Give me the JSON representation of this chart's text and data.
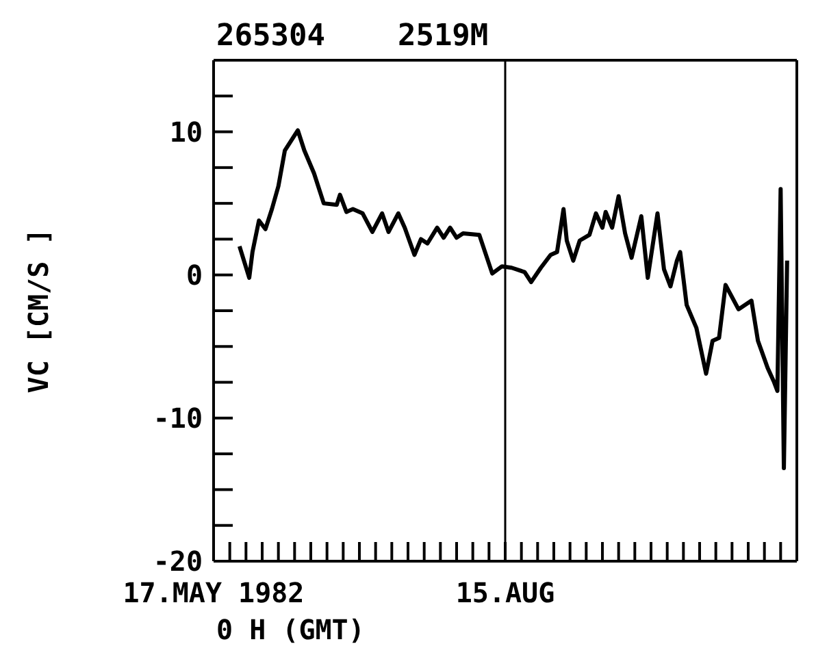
{
  "chart_data": {
    "type": "line",
    "title": "265304    2519M",
    "xlabel": "0 H (GMT)",
    "ylabel": "VC   [CM/S  ]",
    "x": [
      "1982-05-25",
      "1982-05-28",
      "1982-05-29",
      "1982-05-31",
      "1982-06-02",
      "1982-06-04",
      "1982-06-06",
      "1982-06-08",
      "1982-06-12",
      "1982-06-14",
      "1982-06-17",
      "1982-06-20",
      "1982-06-24",
      "1982-06-25",
      "1982-06-27",
      "1982-06-29",
      "1982-07-02",
      "1982-07-05",
      "1982-07-08",
      "1982-07-10",
      "1982-07-13",
      "1982-07-15",
      "1982-07-18",
      "1982-07-20",
      "1982-07-22",
      "1982-07-25",
      "1982-07-27",
      "1982-07-29",
      "1982-07-31",
      "1982-08-02",
      "1982-08-07",
      "1982-08-11",
      "1982-08-14",
      "1982-08-17",
      "1982-08-21",
      "1982-08-23",
      "1982-08-26",
      "1982-08-29",
      "1982-08-31",
      "1982-09-02",
      "1982-09-03",
      "1982-09-05",
      "1982-09-07",
      "1982-09-10",
      "1982-09-12",
      "1982-09-14",
      "1982-09-15",
      "1982-09-17",
      "1982-09-19",
      "1982-09-21",
      "1982-09-23",
      "1982-09-26",
      "1982-09-28",
      "1982-10-01",
      "1982-10-03",
      "1982-10-05",
      "1982-10-07",
      "1982-10-08",
      "1982-10-10",
      "1982-10-13",
      "1982-10-16",
      "1982-10-18",
      "1982-10-20",
      "1982-10-22",
      "1982-10-26",
      "1982-10-30",
      "1982-11-01",
      "1982-11-04",
      "1982-11-06",
      "1982-11-07",
      "1982-11-08",
      "1982-11-09",
      "1982-11-10"
    ],
    "series": [
      {
        "color": "#000000",
        "values": [
          2.0,
          -0.2,
          1.6,
          3.8,
          3.2,
          4.6,
          6.2,
          8.7,
          10.1,
          8.7,
          7.1,
          5.0,
          4.9,
          5.6,
          4.4,
          4.6,
          4.3,
          3.0,
          4.3,
          3.0,
          4.3,
          3.3,
          1.4,
          2.5,
          2.2,
          3.3,
          2.6,
          3.3,
          2.6,
          2.9,
          2.8,
          0.1,
          0.6,
          0.5,
          0.2,
          -0.5,
          0.5,
          1.4,
          1.6,
          4.6,
          2.4,
          1.0,
          2.4,
          2.8,
          4.3,
          3.3,
          4.4,
          3.3,
          5.5,
          2.9,
          1.2,
          4.1,
          -0.2,
          4.3,
          0.4,
          -0.8,
          1.0,
          1.6,
          -2.1,
          -3.7,
          -6.9,
          -4.6,
          -4.4,
          -0.7,
          -2.4,
          -1.8,
          -4.6,
          -6.5,
          -7.5,
          -8.1,
          6.0,
          -13.5,
          1.0
        ]
      }
    ],
    "xlim": [
      "1982-05-17",
      "1982-11-13"
    ],
    "xticks": [
      {
        "value": "1982-05-17",
        "label": "17.MAY 1982"
      },
      {
        "value": "1982-05-22",
        "label": null
      },
      {
        "value": "1982-05-27",
        "label": null
      },
      {
        "value": "1982-06-01",
        "label": null
      },
      {
        "value": "1982-06-06",
        "label": null
      },
      {
        "value": "1982-06-11",
        "label": null
      },
      {
        "value": "1982-06-16",
        "label": null
      },
      {
        "value": "1982-06-21",
        "label": null
      },
      {
        "value": "1982-06-26",
        "label": null
      },
      {
        "value": "1982-07-01",
        "label": null
      },
      {
        "value": "1982-07-06",
        "label": null
      },
      {
        "value": "1982-07-11",
        "label": null
      },
      {
        "value": "1982-07-16",
        "label": null
      },
      {
        "value": "1982-07-21",
        "label": null
      },
      {
        "value": "1982-07-26",
        "label": null
      },
      {
        "value": "1982-07-31",
        "label": null
      },
      {
        "value": "1982-08-05",
        "label": null
      },
      {
        "value": "1982-08-10",
        "label": null
      },
      {
        "value": "1982-08-15",
        "label": "15.AUG"
      },
      {
        "value": "1982-08-20",
        "label": null
      },
      {
        "value": "1982-08-25",
        "label": null
      },
      {
        "value": "1982-08-30",
        "label": null
      },
      {
        "value": "1982-09-04",
        "label": null
      },
      {
        "value": "1982-09-09",
        "label": null
      },
      {
        "value": "1982-09-14",
        "label": null
      },
      {
        "value": "1982-09-19",
        "label": null
      },
      {
        "value": "1982-09-24",
        "label": null
      },
      {
        "value": "1982-09-29",
        "label": null
      },
      {
        "value": "1982-10-04",
        "label": null
      },
      {
        "value": "1982-10-09",
        "label": null
      },
      {
        "value": "1982-10-14",
        "label": null
      },
      {
        "value": "1982-10-19",
        "label": null
      },
      {
        "value": "1982-10-24",
        "label": null
      },
      {
        "value": "1982-10-29",
        "label": null
      },
      {
        "value": "1982-11-03",
        "label": null
      },
      {
        "value": "1982-11-08",
        "label": null
      },
      {
        "value": "1982-11-13",
        "label": null
      }
    ],
    "ylim": [
      -20,
      15
    ],
    "yticks": [
      -20,
      {
        "value": -17.5,
        "label": null
      },
      {
        "value": -15,
        "label": null
      },
      {
        "value": -12.5,
        "label": null
      },
      -10,
      {
        "value": -7.5,
        "label": null
      },
      {
        "value": -5,
        "label": null
      },
      {
        "value": -2.5,
        "label": null
      },
      0,
      {
        "value": 2.5,
        "label": null
      },
      {
        "value": 5,
        "label": null
      },
      {
        "value": 7.5,
        "label": null
      },
      10,
      {
        "value": 12.5,
        "label": null
      },
      {
        "value": 15,
        "label": null
      }
    ],
    "ref_lines": [
      {
        "axis": "x",
        "value": "1982-08-15",
        "color": "#000000"
      }
    ],
    "grid": false,
    "legend": false,
    "marker": "none",
    "line_style": "solid"
  }
}
